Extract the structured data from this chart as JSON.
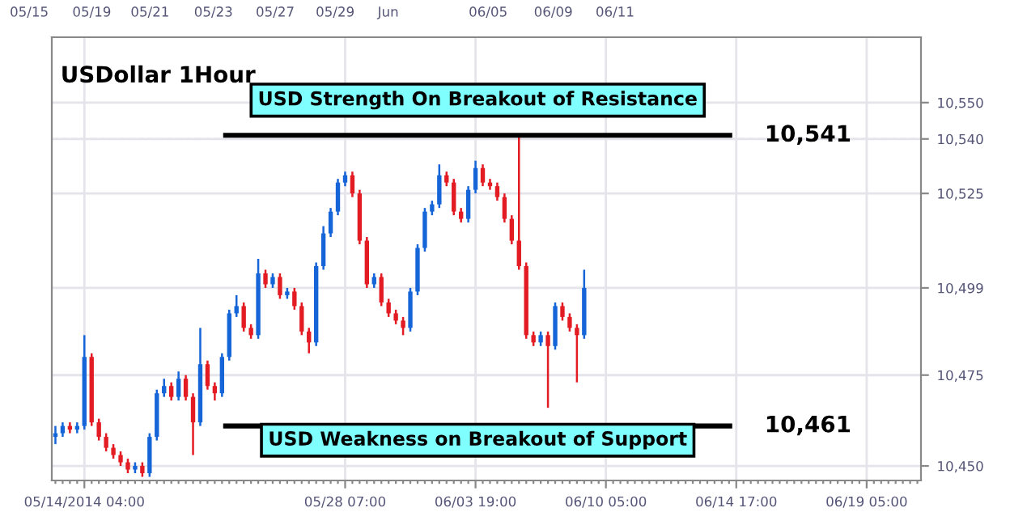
{
  "chart_data": {
    "type": "candlestick",
    "title": "USDollar 1Hour",
    "categories": [
      null,
      null,
      null,
      null,
      "05/14/2014 04:00",
      null,
      null,
      null,
      null,
      null,
      null,
      null,
      null,
      null,
      null,
      null,
      null,
      null,
      null,
      null,
      null,
      null,
      null,
      null,
      null,
      null,
      null,
      null,
      null,
      null,
      null,
      null,
      null,
      null,
      null,
      null,
      null,
      null,
      null,
      null,
      "05/28 07:00",
      null,
      null,
      null,
      null,
      null,
      null,
      null,
      null,
      null,
      null,
      null,
      null,
      null,
      null,
      null,
      null,
      null,
      "06/03 19:00",
      null,
      null,
      null,
      null,
      null,
      null,
      null,
      null,
      null,
      null,
      null,
      null,
      null,
      null,
      null,
      null,
      null,
      "06/10 05:00",
      null,
      null,
      null,
      null,
      null,
      null,
      null,
      null,
      null,
      null,
      null,
      null,
      null,
      null,
      null,
      null,
      null,
      "06/14 17:00",
      null,
      null,
      null,
      null,
      null,
      null,
      null,
      null,
      null,
      null,
      null,
      null,
      null,
      null,
      null,
      null,
      null,
      "06/19 05:00",
      null,
      null,
      null,
      null,
      null,
      null,
      null
    ],
    "ohlc": [
      [
        10458,
        10461,
        10456,
        10459
      ],
      [
        10459,
        10462,
        10458,
        10461
      ],
      [
        10461,
        10462,
        10459,
        10460
      ],
      [
        10460,
        10462,
        10459,
        10461
      ],
      [
        10461,
        10486,
        10460,
        10480
      ],
      [
        10480,
        10481,
        10461,
        10462
      ],
      [
        10462,
        10463,
        10457,
        10458
      ],
      [
        10458,
        10459,
        10454,
        10455
      ],
      [
        10455,
        10456,
        10452,
        10453
      ],
      [
        10453,
        10454,
        10450,
        10451
      ],
      [
        10451,
        10452,
        10448,
        10449
      ],
      [
        10449,
        10451,
        10448,
        10450
      ],
      [
        10450,
        10451,
        10447,
        10448
      ],
      [
        10448,
        10459,
        10447,
        10458
      ],
      [
        10458,
        10471,
        10457,
        10470
      ],
      [
        10470,
        10474,
        10469,
        10472
      ],
      [
        10472,
        10473,
        10468,
        10469
      ],
      [
        10469,
        10476,
        10468,
        10474
      ],
      [
        10474,
        10475,
        10468,
        10469
      ],
      [
        10469,
        10470,
        10453,
        10462
      ],
      [
        10462,
        10488,
        10461,
        10478
      ],
      [
        10478,
        10479,
        10471,
        10472
      ],
      [
        10472,
        10473,
        10468,
        10470
      ],
      [
        10470,
        10481,
        10469,
        10480
      ],
      [
        10480,
        10493,
        10479,
        10492
      ],
      [
        10492,
        10497,
        10491,
        10494
      ],
      [
        10494,
        10495,
        10487,
        10488
      ],
      [
        10488,
        10489,
        10485,
        10486
      ],
      [
        10486,
        10507,
        10485,
        10503
      ],
      [
        10503,
        10504,
        10499,
        10500
      ],
      [
        10500,
        10503,
        10499,
        10502
      ],
      [
        10502,
        10503,
        10496,
        10497
      ],
      [
        10497,
        10499,
        10496,
        10498
      ],
      [
        10498,
        10499,
        10493,
        10494
      ],
      [
        10494,
        10495,
        10486,
        10487
      ],
      [
        10487,
        10488,
        10481,
        10484
      ],
      [
        10484,
        10506,
        10483,
        10505
      ],
      [
        10505,
        10516,
        10504,
        10514
      ],
      [
        10514,
        10521,
        10513,
        10520
      ],
      [
        10520,
        10529,
        10519,
        10528
      ],
      [
        10528,
        10531,
        10527,
        10530
      ],
      [
        10530,
        10531,
        10524,
        10525
      ],
      [
        10525,
        10526,
        10511,
        10512
      ],
      [
        10512,
        10513,
        10499,
        10500
      ],
      [
        10500,
        10503,
        10499,
        10502
      ],
      [
        10502,
        10503,
        10494,
        10495
      ],
      [
        10495,
        10496,
        10491,
        10492
      ],
      [
        10492,
        10493,
        10489,
        10490
      ],
      [
        10490,
        10491,
        10486,
        10488
      ],
      [
        10488,
        10499,
        10487,
        10498
      ],
      [
        10498,
        10511,
        10497,
        10510
      ],
      [
        10510,
        10521,
        10509,
        10520
      ],
      [
        10520,
        10523,
        10519,
        10522
      ],
      [
        10522,
        10533,
        10521,
        10530
      ],
      [
        10530,
        10531,
        10527,
        10528
      ],
      [
        10528,
        10529,
        10519,
        10520
      ],
      [
        10520,
        10521,
        10517,
        10518
      ],
      [
        10518,
        10527,
        10517,
        10526
      ],
      [
        10526,
        10534,
        10525,
        10532
      ],
      [
        10532,
        10533,
        10527,
        10528
      ],
      [
        10528,
        10529,
        10526,
        10527
      ],
      [
        10527,
        10528,
        10523,
        10524
      ],
      [
        10524,
        10525,
        10517,
        10518
      ],
      [
        10518,
        10519,
        10511,
        10512
      ],
      [
        10512,
        10541,
        10504,
        10505
      ],
      [
        10505,
        10506,
        10485,
        10486
      ],
      [
        10486,
        10487,
        10483,
        10484
      ],
      [
        10484,
        10487,
        10483,
        10486
      ],
      [
        10486,
        10487,
        10466,
        10483
      ],
      [
        10483,
        10495,
        10482,
        10494
      ],
      [
        10494,
        10495,
        10490,
        10491
      ],
      [
        10491,
        10492,
        10487,
        10488
      ],
      [
        10488,
        10489,
        10473,
        10486
      ],
      [
        10486,
        10504,
        10485,
        10499
      ],
      null,
      null,
      null,
      null,
      null,
      null,
      null,
      null,
      null,
      null,
      null,
      null,
      null,
      null,
      null,
      null,
      null,
      null,
      null,
      null,
      null,
      null,
      null,
      null,
      null,
      null,
      null,
      null,
      null,
      null,
      null,
      null,
      null,
      null,
      null,
      null,
      null,
      null,
      null,
      null,
      null,
      null,
      null,
      null,
      null,
      null
    ],
    "colors": [
      "#1565d8",
      "#1565d8",
      "#e31b23",
      "#1565d8",
      "#1565d8",
      "#e31b23",
      "#e31b23",
      "#e31b23",
      "#e31b23",
      "#e31b23",
      "#e31b23",
      "#1565d8",
      "#e31b23",
      "#1565d8",
      "#1565d8",
      "#1565d8",
      "#e31b23",
      "#1565d8",
      "#e31b23",
      "#e31b23",
      "#1565d8",
      "#e31b23",
      "#e31b23",
      "#1565d8",
      "#1565d8",
      "#1565d8",
      "#e31b23",
      "#e31b23",
      "#1565d8",
      "#e31b23",
      "#1565d8",
      "#e31b23",
      "#1565d8",
      "#e31b23",
      "#e31b23",
      "#e31b23",
      "#1565d8",
      "#1565d8",
      "#1565d8",
      "#1565d8",
      "#1565d8",
      "#e31b23",
      "#e31b23",
      "#e31b23",
      "#1565d8",
      "#e31b23",
      "#e31b23",
      "#e31b23",
      "#e31b23",
      "#1565d8",
      "#1565d8",
      "#1565d8",
      "#1565d8",
      "#1565d8",
      "#e31b23",
      "#e31b23",
      "#e31b23",
      "#1565d8",
      "#1565d8",
      "#e31b23",
      "#e31b23",
      "#e31b23",
      "#e31b23",
      "#e31b23",
      "#e31b23",
      "#e31b23",
      "#e31b23",
      "#1565d8",
      "#e31b23",
      "#1565d8",
      "#e31b23",
      "#e31b23",
      "#e31b23",
      "#1565d8",
      null,
      null,
      null,
      null,
      null,
      null,
      null,
      null,
      null,
      null,
      null,
      null,
      null,
      null,
      null,
      null,
      null,
      null,
      null,
      null,
      null,
      null,
      null,
      null,
      null,
      null,
      null,
      null,
      null,
      null,
      null,
      null,
      null,
      null,
      null,
      null,
      null,
      null,
      null,
      null,
      null,
      null,
      null,
      null,
      null,
      null
    ],
    "ylim": [
      10446,
      10568
    ],
    "yticks": [
      {
        "value": 10450,
        "label": "10,450"
      },
      {
        "value": 10475,
        "label": "10,475"
      },
      {
        "value": 10499,
        "label": "10,499"
      },
      {
        "value": 10525,
        "label": "10,525"
      },
      {
        "value": 10540,
        "label": "10,540"
      },
      {
        "value": 10550,
        "label": "10,550"
      }
    ],
    "grid": true,
    "ref_lines": [
      {
        "axis": "y",
        "value": 10541,
        "label": "10,541",
        "color": "#000000",
        "line_style": "solid"
      },
      {
        "axis": "y",
        "value": 10461,
        "label": "10,461",
        "color": "#000000",
        "line_style": "solid"
      },
      {
        "axis": "y",
        "value": 10540,
        "label": null,
        "color": "#cccccc",
        "line_style": "dashed"
      }
    ],
    "annotations": [
      "USD Strength On Breakout of Resistance",
      "USD Weakness on Breakout of Support",
      "05/15",
      "05/19",
      "05/21",
      "05/23",
      "05/27",
      "05/29",
      "Jun",
      "06/05",
      "06/09",
      "06/11"
    ]
  }
}
